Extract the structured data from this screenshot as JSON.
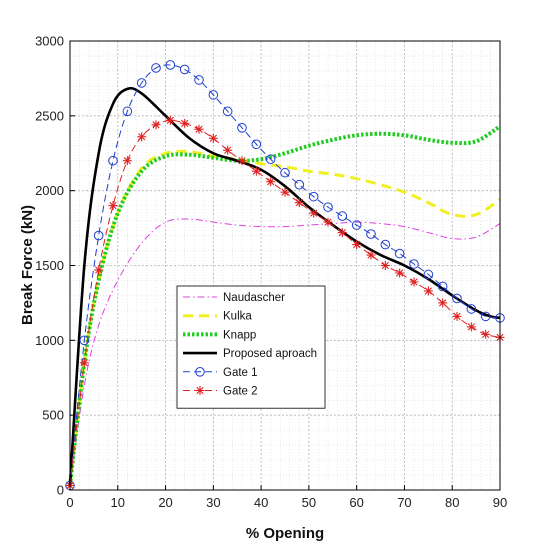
{
  "chart_data": {
    "type": "line",
    "title": "",
    "xlabel": "% Opening",
    "ylabel": "Break Force (kN)",
    "xlim": [
      0,
      90
    ],
    "ylim": [
      0,
      3000
    ],
    "xticks": [
      "0",
      "10",
      "20",
      "30",
      "40",
      "50",
      "60",
      "70",
      "80",
      "90"
    ],
    "yticks": [
      "0",
      "500",
      "1000",
      "1500",
      "2000",
      "2500",
      "3000"
    ],
    "grid": "on (major and minor, dotted)",
    "legend_position": "lower-center",
    "series": [
      {
        "name": "Naudascher",
        "color": "#e040e0",
        "line_style": "dash-dot",
        "marker": "none",
        "x": [
          0,
          3,
          6,
          10,
          15,
          20,
          25,
          30,
          35,
          40,
          45,
          50,
          55,
          60,
          65,
          70,
          75,
          80,
          85,
          90
        ],
        "y": [
          30,
          700,
          1100,
          1400,
          1650,
          1790,
          1810,
          1790,
          1770,
          1760,
          1760,
          1770,
          1780,
          1790,
          1780,
          1760,
          1720,
          1680,
          1690,
          1780
        ]
      },
      {
        "name": "Kulka",
        "color": "#f0f020",
        "line_style": "dashed",
        "marker": "none",
        "x": [
          0,
          3,
          6,
          10,
          15,
          20,
          25,
          30,
          35,
          40,
          45,
          50,
          55,
          60,
          65,
          70,
          75,
          80,
          85,
          90
        ],
        "y": [
          30,
          850,
          1400,
          1850,
          2150,
          2250,
          2260,
          2230,
          2210,
          2180,
          2160,
          2130,
          2110,
          2080,
          2040,
          1990,
          1920,
          1840,
          1840,
          1940
        ]
      },
      {
        "name": "Knapp",
        "color": "#22cc22",
        "line_style": "dotted-thick",
        "marker": "none",
        "x": [
          0,
          3,
          6,
          10,
          15,
          20,
          25,
          30,
          35,
          40,
          45,
          50,
          55,
          60,
          65,
          70,
          75,
          80,
          85,
          90
        ],
        "y": [
          30,
          850,
          1400,
          1850,
          2130,
          2230,
          2240,
          2220,
          2200,
          2210,
          2250,
          2300,
          2340,
          2370,
          2380,
          2370,
          2340,
          2320,
          2330,
          2430
        ]
      },
      {
        "name": "Proposed aproach",
        "color": "#000000",
        "line_style": "solid",
        "marker": "none",
        "x": [
          0,
          3,
          6,
          9,
          12,
          15,
          20,
          25,
          30,
          35,
          40,
          45,
          50,
          55,
          60,
          65,
          70,
          75,
          80,
          85,
          88,
          90
        ],
        "y": [
          30,
          1500,
          2250,
          2580,
          2680,
          2650,
          2500,
          2350,
          2250,
          2200,
          2140,
          2030,
          1890,
          1770,
          1660,
          1570,
          1500,
          1410,
          1300,
          1200,
          1160,
          1150
        ]
      },
      {
        "name": "Gate 1",
        "color": "#2040d0",
        "line_style": "dashed",
        "marker": "circle",
        "x": [
          0,
          3,
          6,
          9,
          12,
          15,
          18,
          21,
          24,
          27,
          30,
          33,
          36,
          39,
          42,
          45,
          48,
          51,
          54,
          57,
          60,
          63,
          66,
          69,
          72,
          75,
          78,
          81,
          84,
          87,
          90
        ],
        "y": [
          30,
          1000,
          1700,
          2200,
          2530,
          2720,
          2820,
          2840,
          2810,
          2740,
          2640,
          2530,
          2420,
          2310,
          2210,
          2120,
          2040,
          1960,
          1890,
          1830,
          1770,
          1710,
          1640,
          1580,
          1510,
          1440,
          1360,
          1280,
          1210,
          1160,
          1150
        ]
      },
      {
        "name": "Gate 2",
        "color": "#e02020",
        "line_style": "dashed",
        "marker": "asterisk",
        "x": [
          0,
          3,
          6,
          9,
          12,
          15,
          18,
          21,
          24,
          27,
          30,
          33,
          36,
          39,
          42,
          45,
          48,
          51,
          54,
          57,
          60,
          63,
          66,
          69,
          72,
          75,
          78,
          81,
          84,
          87,
          90
        ],
        "y": [
          30,
          850,
          1470,
          1900,
          2200,
          2360,
          2440,
          2470,
          2450,
          2410,
          2350,
          2270,
          2200,
          2130,
          2060,
          1990,
          1920,
          1850,
          1790,
          1720,
          1640,
          1570,
          1500,
          1450,
          1390,
          1330,
          1250,
          1160,
          1090,
          1040,
          1020
        ]
      }
    ]
  }
}
